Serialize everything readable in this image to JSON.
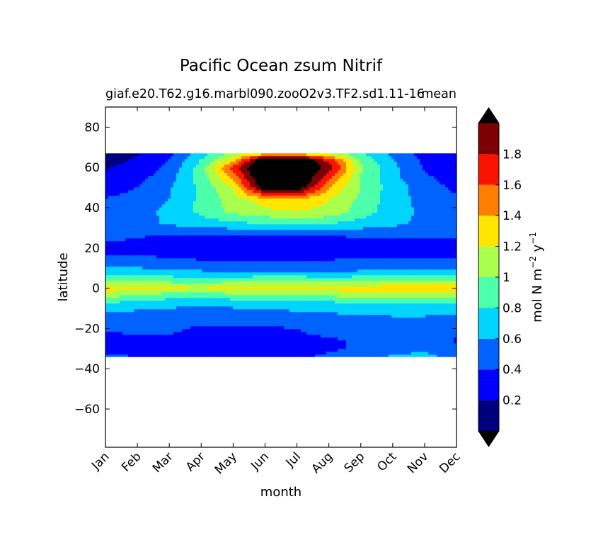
{
  "chart_data": {
    "type": "heatmap",
    "title": "Pacific Ocean zsum Nitrif",
    "subtitle_left": "giaf.e20.T62.g16.marbl090.zooO2v3.TF2.sd1.11-16",
    "subtitle_right": "mean",
    "xlabel": "month",
    "ylabel": "latitude",
    "x_ticks": [
      "Jan",
      "Feb",
      "Mar",
      "Apr",
      "May",
      "Jun",
      "Jul",
      "Aug",
      "Sep",
      "Oct",
      "Nov",
      "Dec"
    ],
    "y_ticks": [
      80,
      60,
      40,
      20,
      0,
      -20,
      -40,
      -60
    ],
    "y_tick_labels": [
      "80",
      "60",
      "40",
      "20",
      "0",
      "−20",
      "−40",
      "−60"
    ],
    "xlim": [
      0,
      11
    ],
    "ylim": [
      -79,
      90
    ],
    "data_extent_lat": [
      -34,
      67
    ],
    "colorbar": {
      "label_main": "mol N m",
      "label_exp1": "−2",
      "label_y": " y",
      "label_exp2": "−1",
      "levels": [
        0,
        0.2,
        0.4,
        0.6,
        0.8,
        1.0,
        1.2,
        1.4,
        1.6,
        1.8,
        2.0
      ],
      "tick_values": [
        0.2,
        0.4,
        0.6,
        0.8,
        1.0,
        1.2,
        1.4,
        1.6,
        1.8
      ],
      "tick_labels": [
        "0.2",
        "0.4",
        "0.6",
        "0.8",
        "1",
        "1.2",
        "1.4",
        "1.6",
        "1.8"
      ],
      "colors": [
        "#00007f",
        "#0000ff",
        "#0063ff",
        "#00d4ff",
        "#4dffaa",
        "#aaff4d",
        "#ffe500",
        "#ff7d00",
        "#fa1400",
        "#7f0000"
      ],
      "extend_low_color": "#000000",
      "extend_high_color": "#000000"
    },
    "field_months": [
      0,
      1,
      2,
      3,
      4,
      5,
      6,
      7,
      8,
      9,
      10,
      11
    ],
    "field_lats": [
      -34,
      -30,
      -26,
      -20,
      -14,
      -8,
      -4,
      0,
      4,
      8,
      14,
      20,
      26,
      32,
      38,
      44,
      50,
      56,
      60,
      64,
      67
    ],
    "field_values": [
      [
        0.45,
        0.4,
        0.35,
        0.3,
        0.3,
        0.3,
        0.35,
        0.45,
        0.55,
        0.62,
        0.65,
        0.55
      ],
      [
        0.3,
        0.28,
        0.3,
        0.3,
        0.3,
        0.3,
        0.32,
        0.35,
        0.45,
        0.55,
        0.55,
        0.45
      ],
      [
        0.3,
        0.35,
        0.38,
        0.38,
        0.38,
        0.38,
        0.38,
        0.38,
        0.42,
        0.45,
        0.45,
        0.38
      ],
      [
        0.45,
        0.45,
        0.42,
        0.38,
        0.38,
        0.38,
        0.4,
        0.45,
        0.48,
        0.48,
        0.48,
        0.48
      ],
      [
        0.55,
        0.5,
        0.5,
        0.48,
        0.48,
        0.5,
        0.52,
        0.55,
        0.58,
        0.6,
        0.6,
        0.58
      ],
      [
        0.75,
        0.7,
        0.65,
        0.62,
        0.65,
        0.68,
        0.7,
        0.72,
        0.75,
        0.78,
        0.78,
        0.78
      ],
      [
        1.05,
        0.95,
        0.88,
        0.85,
        0.9,
        0.95,
        0.98,
        1.0,
        1.05,
        1.1,
        1.1,
        1.1
      ],
      [
        1.3,
        1.25,
        1.22,
        1.2,
        1.25,
        1.3,
        1.3,
        1.28,
        1.3,
        1.35,
        1.38,
        1.35
      ],
      [
        1.0,
        0.95,
        0.92,
        0.9,
        0.92,
        0.95,
        0.95,
        0.92,
        0.95,
        1.0,
        1.02,
        1.0
      ],
      [
        0.7,
        0.68,
        0.65,
        0.62,
        0.62,
        0.62,
        0.62,
        0.6,
        0.62,
        0.65,
        0.65,
        0.65
      ],
      [
        0.45,
        0.45,
        0.42,
        0.4,
        0.4,
        0.4,
        0.4,
        0.4,
        0.42,
        0.42,
        0.42,
        0.42
      ],
      [
        0.35,
        0.32,
        0.3,
        0.3,
        0.3,
        0.3,
        0.3,
        0.3,
        0.3,
        0.3,
        0.32,
        0.32
      ],
      [
        0.45,
        0.42,
        0.38,
        0.35,
        0.38,
        0.4,
        0.4,
        0.4,
        0.42,
        0.42,
        0.42,
        0.42
      ],
      [
        0.5,
        0.55,
        0.62,
        0.7,
        0.75,
        0.8,
        0.82,
        0.8,
        0.72,
        0.65,
        0.55,
        0.5
      ],
      [
        0.48,
        0.52,
        0.65,
        0.85,
        1.05,
        1.15,
        1.2,
        1.15,
        0.9,
        0.7,
        0.55,
        0.48
      ],
      [
        0.42,
        0.48,
        0.6,
        0.85,
        1.1,
        1.3,
        1.35,
        1.2,
        0.95,
        0.7,
        0.52,
        0.45
      ],
      [
        0.3,
        0.4,
        0.58,
        0.85,
        1.2,
        2.2,
        2.2,
        1.4,
        1.0,
        0.7,
        0.5,
        0.35
      ],
      [
        0.22,
        0.32,
        0.5,
        0.9,
        1.5,
        2.4,
        2.4,
        1.7,
        1.0,
        0.65,
        0.42,
        0.3
      ],
      [
        0.18,
        0.28,
        0.45,
        0.9,
        1.7,
        2.4,
        2.4,
        1.9,
        1.05,
        0.65,
        0.38,
        0.28
      ],
      [
        0.12,
        0.22,
        0.4,
        0.8,
        1.25,
        2.3,
        2.3,
        1.7,
        0.95,
        0.6,
        0.35,
        0.25
      ],
      [
        0.1,
        0.18,
        0.35,
        0.7,
        1.05,
        1.2,
        1.2,
        1.1,
        0.8,
        0.55,
        0.32,
        0.22
      ]
    ]
  }
}
